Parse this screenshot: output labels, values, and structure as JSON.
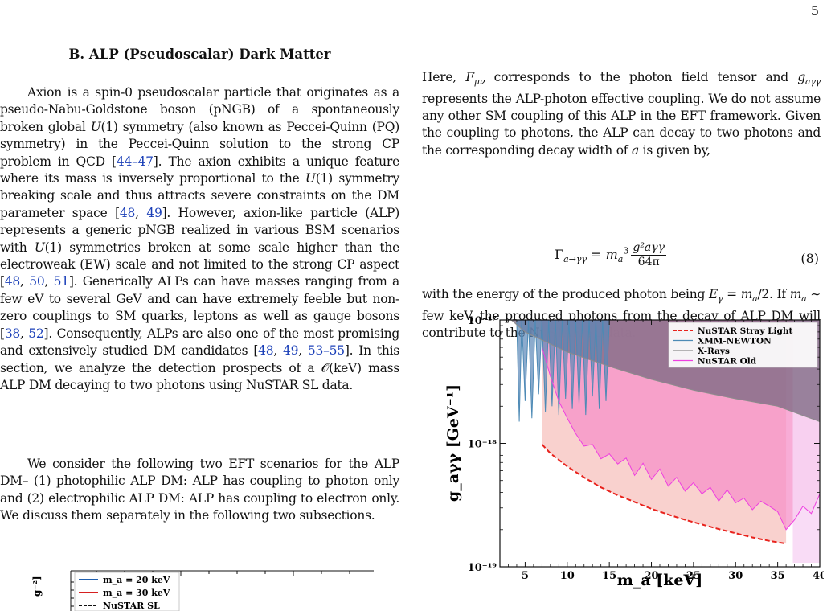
{
  "page": {
    "number": "5"
  },
  "left": {
    "section_heading": "B.   ALP (Pseudoscalar) Dark Matter",
    "para1": {
      "t1": "Axion is a spin-0 pseudoscalar particle that originates as a pseudo-Nabu-Goldstone boson (pNGB) of a spontaneously broken global ",
      "u1": "U",
      "t2": "(1) symmetry (also known as Peccei-Quinn (PQ) symmetry) in the Peccei-Quinn solution to the strong CP problem in QCD [",
      "c1": "44–47",
      "t3": "]. The axion exhibits a unique feature where its mass is inversely proportional to the ",
      "u2": "U",
      "t4": "(1) symmetry breaking scale and thus attracts severe constraints on the DM parameter space [",
      "c2": "48",
      "t5": ", ",
      "c3": "49",
      "t6": "]. However, axion-like particle (ALP) represents a generic pNGB realized in various BSM scenarios with ",
      "u3": "U",
      "t7": "(1) symmetries broken at some scale higher than the electroweak (EW) scale and not limited to the strong CP aspect [",
      "c4": "48",
      "t8": ", ",
      "c5": "50",
      "t9": ", ",
      "c6": "51",
      "t10": "]. Generically ALPs can have masses ranging from a few eV to several GeV and can have extremely feeble but non-zero couplings to SM quarks, leptons as well as gauge bosons [",
      "c7": "38",
      "t11": ", ",
      "c8": "52",
      "t12": "]. Consequently, ALPs are also one of the most promising and extensively studied DM candidates [",
      "c9": "48",
      "t13": ", ",
      "c10": "49",
      "t14": ", ",
      "c11": "53–55",
      "t15": "]. In this section, we analyze the detection prospects of a ",
      "t16": "𝒪(keV) mass ALP DM decaying to two photons using NuSTAR SL data."
    },
    "para2": "We consider the following two EFT scenarios for the ALP DM– (1) photophilic ALP DM: ALP has coupling to photon only and (2) electrophilic ALP DM: ALP has coupling to electron only. We discuss them separately in the following two subsections."
  },
  "right": {
    "para1": {
      "t1": "Here, ",
      "f": "F",
      "f_sub": "μν",
      "t2": " corresponds to the photon field tensor and ",
      "g": "g",
      "g_sub": "aγγ",
      "t3": " represents the ALP-photon effective coupling. We do not assume any other SM coupling of this ALP in the EFT framework. Given the coupling to photons, the ALP can decay to two photons and the corresponding decay width of ",
      "a": "a",
      "t4": " is given by,"
    },
    "equation": {
      "lhs": "Γ",
      "lhs_sub": "a→γγ",
      "eq": " = ",
      "m": "m",
      "m_sub": "a",
      "m_sup": "3",
      "numerator": "g²aγγ",
      "denominator": "64π",
      "number": "(8)"
    },
    "para2": {
      "t1": "with the energy of the produced photon being ",
      "e": "E",
      "e_sub": "γ",
      "t2": " = ",
      "m": "m",
      "m_sub": "a",
      "t3": "/2.  If ",
      "t4": " ∼ few keV, the produced photons from the decay of ALP DM will contribute to the NuSTAR SL data."
    }
  },
  "chart_data": {
    "type": "line",
    "title": "",
    "xlabel": "m_a [keV]",
    "ylabel": "g_aγγ [GeV⁻¹]",
    "xlim": [
      2,
      40
    ],
    "ylim": [
      1e-19,
      1e-17
    ],
    "y_scale": "log",
    "x_ticks": [
      "5",
      "10",
      "15",
      "20",
      "25",
      "30",
      "35",
      "40"
    ],
    "y_ticks": [
      "10⁻¹⁷",
      "10⁻¹⁸",
      "10⁻¹⁹"
    ],
    "legend_position": "top-right",
    "series": [
      {
        "name": "NuSTAR Stray Light",
        "color": "#e8231d",
        "style": "dashed",
        "x": [
          7,
          8,
          10,
          12,
          14,
          16,
          18,
          20,
          22,
          24,
          26,
          28,
          30,
          32,
          34,
          36
        ],
        "y": [
          9.8e-19,
          8.3e-19,
          6.5e-19,
          5.3e-19,
          4.4e-19,
          3.8e-19,
          3.35e-19,
          2.95e-19,
          2.65e-19,
          2.4e-19,
          2.2e-19,
          2.02e-19,
          1.87e-19,
          1.73e-19,
          1.62e-19,
          1.54e-19
        ]
      },
      {
        "name": "XMM-NEWTON",
        "color": "#4d8ab5",
        "style": "solid",
        "x": [
          4.0,
          4.3,
          4.6,
          5.0,
          5.4,
          5.8,
          6.2,
          6.6,
          7.0,
          7.4,
          7.8,
          8.2,
          8.6,
          9.0,
          9.4,
          9.8,
          10.2,
          10.6,
          11.0,
          11.4,
          11.8,
          12.2,
          12.6,
          13.0,
          13.4,
          13.8,
          14.2,
          14.6,
          15.0
        ],
        "y": [
          1e-17,
          1.5e-18,
          1e-17,
          2.2e-18,
          1e-17,
          1.6e-18,
          1e-17,
          2.5e-18,
          1e-17,
          1.8e-18,
          1e-17,
          2e-18,
          1e-17,
          1.7e-18,
          1e-17,
          2.3e-18,
          1e-17,
          1.9e-18,
          1e-17,
          2.1e-18,
          1e-17,
          1.7e-18,
          1e-17,
          2.4e-18,
          1e-17,
          1.9e-18,
          1e-17,
          2.2e-18,
          1e-17
        ]
      },
      {
        "name": "X-Rays",
        "color": "#8c8c8c",
        "style": "solid",
        "x": [
          2,
          5,
          10,
          15,
          20,
          25,
          30,
          35,
          40
        ],
        "y": [
          1.2e-17,
          8e-18,
          5.5e-18,
          4.2e-18,
          3.3e-18,
          2.7e-18,
          2.3e-18,
          2e-18,
          1.5e-18
        ]
      },
      {
        "name": "NuSTAR Old",
        "color": "#ee3fe0",
        "style": "solid",
        "x": [
          7,
          8,
          9,
          10,
          11,
          12,
          13,
          14,
          15,
          16,
          17,
          18,
          19,
          20,
          21,
          22,
          23,
          24,
          25,
          26,
          27,
          28,
          29,
          30,
          31,
          32,
          33,
          34,
          35,
          36,
          37,
          38,
          39,
          40
        ],
        "y": [
          6e-18,
          3.5e-18,
          2.2e-18,
          1.6e-18,
          1.2e-18,
          9.5e-19,
          9.8e-19,
          7.5e-19,
          8.2e-19,
          6.8e-19,
          7.6e-19,
          5.5e-19,
          6.9e-19,
          5.1e-19,
          6.2e-19,
          4.5e-19,
          5.3e-19,
          4.1e-19,
          4.8e-19,
          3.9e-19,
          4.4e-19,
          3.4e-19,
          4.2e-19,
          3.3e-19,
          3.6e-19,
          2.9e-19,
          3.4e-19,
          3.1e-19,
          2.8e-19,
          2e-19,
          2.4e-19,
          3.1e-19,
          2.7e-19,
          3.9e-19
        ]
      }
    ]
  },
  "mini_figure": {
    "legend": [
      "m_a = 20 keV",
      "m_a = 30 keV",
      "NuSTAR SL"
    ],
    "ylabel_fragment": "g⁻²]"
  }
}
